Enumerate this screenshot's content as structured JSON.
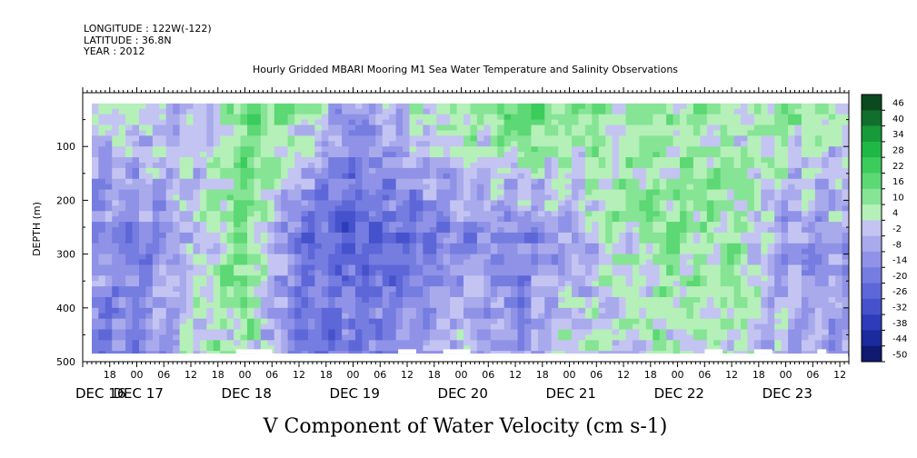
{
  "header": {
    "longitude": "LONGITUDE : 122W(-122)",
    "latitude": "LATITUDE : 36.8N",
    "year": "YEAR : 2012",
    "title": "Hourly Gridded MBARI Mooring M1 Sea Water Temperature and Salinity Observations",
    "variable": "V Component of Water Velocity (cm s-1)"
  },
  "chart_data": {
    "type": "heatmap",
    "title": "Hourly Gridded MBARI Mooring M1 Sea Water Temperature and Salinity Observations",
    "xlabel": "",
    "ylabel": "DEPTH (m)",
    "colorbar_label": "V Component of Water Velocity (cm s-1)",
    "x_range_hours": [
      "DEC 16 12:00",
      "DEC 23 14:00"
    ],
    "ylim": [
      500,
      0
    ],
    "y_axis_inverted": true,
    "y_ticks": [
      100,
      200,
      300,
      400,
      500
    ],
    "x_hour_ticks": [
      "18",
      "00",
      "06",
      "12",
      "18",
      "00",
      "06",
      "12",
      "18",
      "00",
      "06",
      "12",
      "18",
      "00",
      "06",
      "12",
      "18",
      "00",
      "06",
      "12",
      "18",
      "00",
      "06",
      "12",
      "18",
      "00",
      "06",
      "12"
    ],
    "x_date_labels": [
      "DEC 16",
      "DEC 17",
      "DEC 18",
      "DEC 19",
      "DEC 20",
      "DEC 21",
      "DEC 22",
      "DEC 23"
    ],
    "colorbar_levels": [
      "46",
      "40",
      "34",
      "28",
      "22",
      "16",
      "10",
      "4",
      "-2",
      "-8",
      "-14",
      "-20",
      "-26",
      "-32",
      "-38",
      "-44",
      "-50"
    ],
    "colorbar_colors": [
      "#0a4a1e",
      "#116e2c",
      "#169a3a",
      "#1fb847",
      "#3bcc5c",
      "#5cd874",
      "#86e495",
      "#b4f0b8",
      "#c4c4f2",
      "#a9aaec",
      "#8f92e6",
      "#767de0",
      "#5d67d8",
      "#4552cc",
      "#2d3cba",
      "#1c2a9e",
      "#0f1a70"
    ],
    "depth_data_range": [
      20,
      485
    ],
    "time_series_band_structure": {
      "times_hours_from_dec16_00": [
        12,
        24,
        36,
        48,
        60,
        72,
        84,
        96,
        108,
        120,
        132,
        144,
        156,
        168,
        180
      ],
      "v_surface_cm_s": [
        0,
        6,
        -6,
        18,
        10,
        -10,
        4,
        12,
        20,
        14,
        10,
        8,
        6,
        14,
        4
      ],
      "v_mid_cm_s": [
        -10,
        -14,
        2,
        14,
        -20,
        -24,
        -20,
        -12,
        -14,
        -4,
        8,
        12,
        10,
        -8,
        -6
      ],
      "v_deep_cm_s": [
        -14,
        -12,
        4,
        10,
        -18,
        -16,
        -12,
        2,
        -10,
        4,
        2,
        8,
        6,
        -4,
        -8
      ]
    }
  }
}
